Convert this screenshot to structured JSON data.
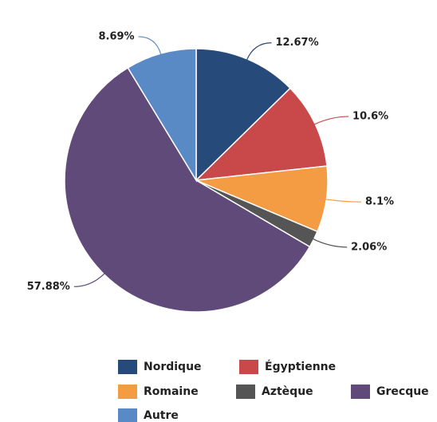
{
  "chart_data": {
    "type": "pie",
    "categories": [
      "Nordique",
      "Égyptienne",
      "Romaine",
      "Aztèque",
      "Grecque",
      "Autre"
    ],
    "values": [
      12.67,
      10.6,
      8.1,
      2.06,
      57.88,
      8.69
    ],
    "value_labels": [
      "12.67%",
      "10.6%",
      "8.1%",
      "2.06%",
      "57.88%",
      "8.69%"
    ],
    "colors": [
      "#264a7a",
      "#c9494a",
      "#f39c43",
      "#555555",
      "#5f4a7a",
      "#5a8ac6"
    ]
  }
}
